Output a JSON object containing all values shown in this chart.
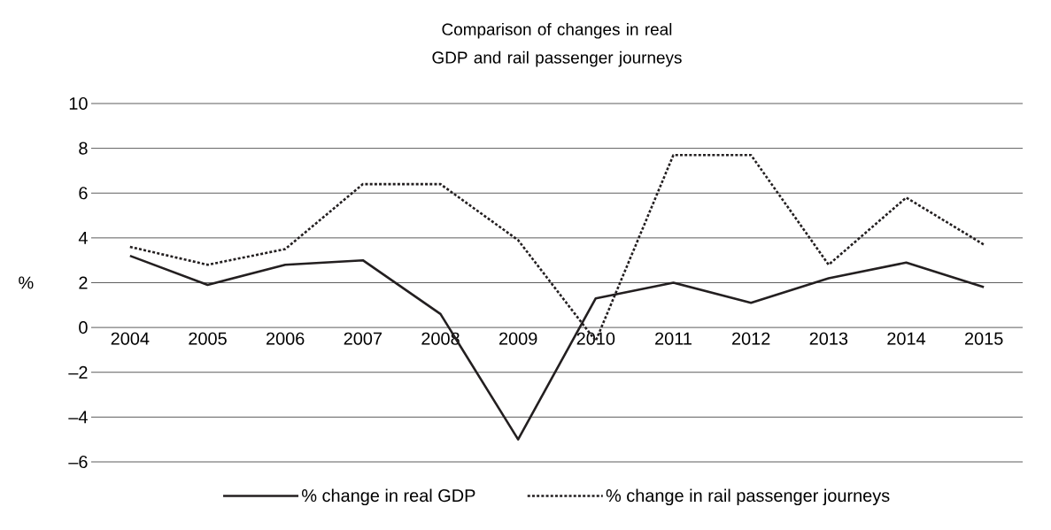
{
  "chart_data": {
    "type": "line",
    "title": "Comparison of changes in real GDP and rail passenger journeys",
    "ylabel": "%",
    "categories": [
      "2004",
      "2005",
      "2006",
      "2007",
      "2008",
      "2009",
      "2010",
      "2011",
      "2012",
      "2013",
      "2014",
      "2015"
    ],
    "series": [
      {
        "name": "% change in real GDP",
        "color": "#231f20",
        "line_style": "solid",
        "values": [
          3.2,
          1.9,
          2.8,
          3.0,
          0.6,
          -5.0,
          1.3,
          2.0,
          1.1,
          2.2,
          2.9,
          1.8
        ]
      },
      {
        "name": "% change in rail passenger journeys",
        "color": "#231f20",
        "line_style": "dotted",
        "values": [
          3.6,
          2.8,
          3.5,
          6.4,
          6.4,
          3.9,
          -0.6,
          7.7,
          7.7,
          2.8,
          5.8,
          3.7
        ]
      }
    ],
    "ylim": [
      -6,
      10
    ],
    "yticks": [
      {
        "value": -6,
        "label": "–6"
      },
      {
        "value": -4,
        "label": "–4"
      },
      {
        "value": -2,
        "label": "–2"
      },
      0,
      2,
      4,
      6,
      8,
      10
    ],
    "grid": "y",
    "legend": "bottom",
    "marker": "none"
  }
}
